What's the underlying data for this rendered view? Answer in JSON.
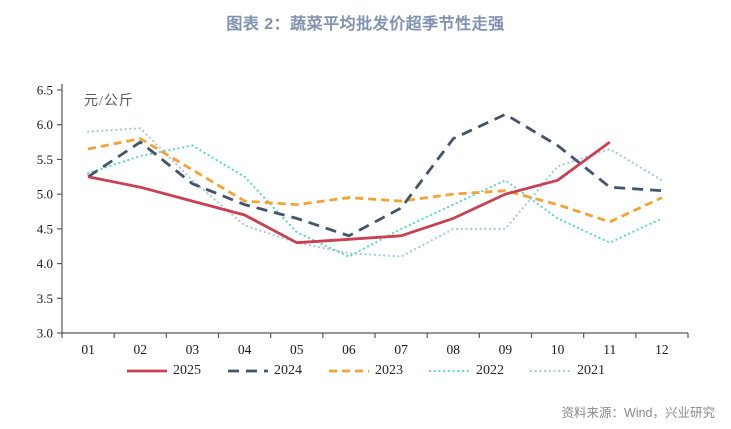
{
  "title": "图表 2：蔬菜平均批发价超季节性走强",
  "source": "资料来源：Wind，兴业研究",
  "chart_data": {
    "type": "line",
    "title": "图表 2：蔬菜平均批发价超季节性走强",
    "ylabel": "元/公斤",
    "xlabel": "",
    "grid": false,
    "legend_position": "bottom",
    "ylim": [
      3.0,
      6.5
    ],
    "y_ticks": [
      "6.5",
      "6.0",
      "5.5",
      "5.0",
      "4.5",
      "4.0",
      "3.5",
      "3.0"
    ],
    "categories": [
      "01",
      "02",
      "03",
      "04",
      "05",
      "06",
      "07",
      "08",
      "09",
      "10",
      "11",
      "12"
    ],
    "series": [
      {
        "name": "2025",
        "color": "#c84052",
        "style": "solid",
        "values": [
          5.25,
          5.1,
          4.9,
          4.7,
          4.3,
          4.35,
          4.4,
          4.65,
          5.0,
          5.2,
          5.75
        ]
      },
      {
        "name": "2024",
        "color": "#44546a",
        "style": "dashed",
        "values": [
          5.25,
          5.75,
          5.15,
          4.85,
          4.65,
          4.4,
          4.8,
          5.8,
          6.15,
          5.7,
          5.1,
          5.05
        ]
      },
      {
        "name": "2023",
        "color": "#f4a234",
        "style": "dashed",
        "values": [
          5.65,
          5.8,
          5.35,
          4.9,
          4.85,
          4.95,
          4.9,
          5.0,
          5.05,
          4.85,
          4.6,
          4.95
        ]
      },
      {
        "name": "2022",
        "color": "#5fd6cd",
        "style": "dotted",
        "values": [
          5.3,
          5.55,
          5.7,
          5.25,
          4.45,
          4.1,
          4.5,
          4.85,
          5.2,
          4.65,
          4.3,
          4.65
        ]
      },
      {
        "name": "2021",
        "color": "#aac7e1",
        "style": "dotted",
        "values": [
          5.9,
          5.95,
          5.2,
          4.55,
          4.3,
          4.15,
          4.1,
          4.5,
          4.5,
          5.4,
          5.65,
          5.2
        ]
      }
    ],
    "axis_color": "#595959",
    "tick_text_color": "#1a1a1a"
  }
}
